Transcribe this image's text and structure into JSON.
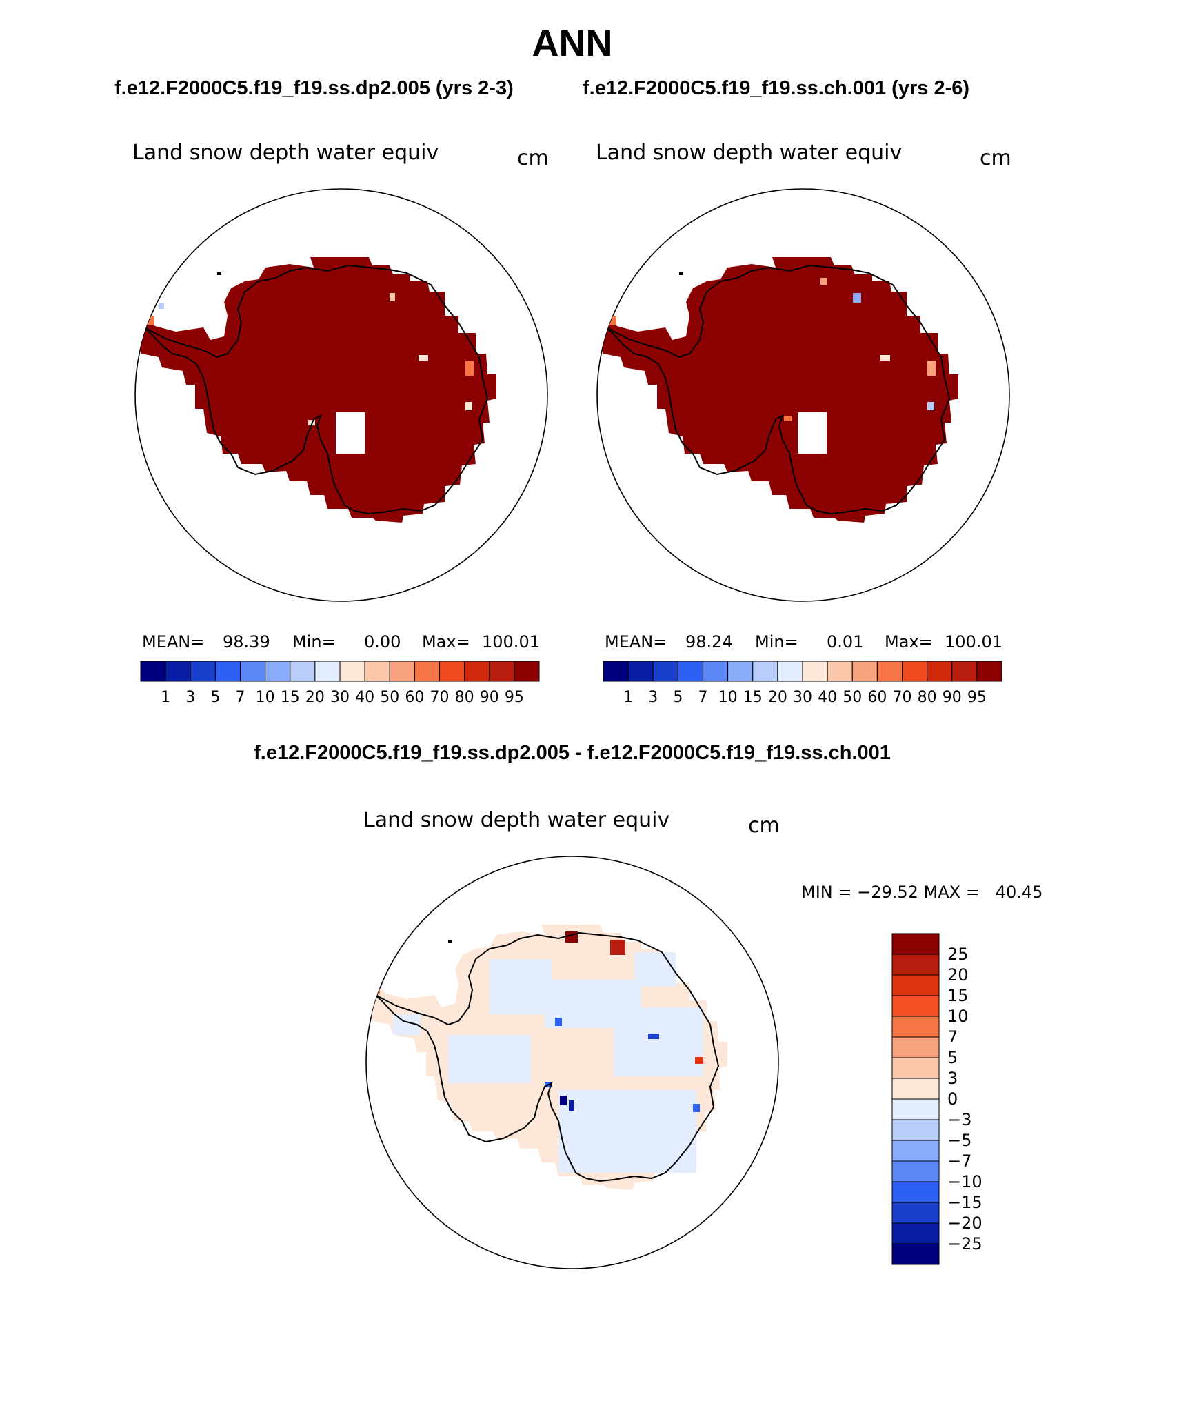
{
  "title": "ANN",
  "cases": {
    "left": "f.e12.F2000C5.f19_f19.ss.dp2.005 (yrs 2-3)",
    "right": "f.e12.F2000C5.f19_f19.ss.ch.001 (yrs 2-6)"
  },
  "diff_title": "f.e12.F2000C5.f19_f19.ss.dp2.005 - f.e12.F2000C5.f19_f19.ss.ch.001",
  "panels": [
    {
      "variable": "Land snow depth water equiv",
      "units": "cm",
      "mean_label": "MEAN=",
      "mean": "98.39",
      "min_label": "Min=",
      "min": "0.00",
      "max_label": "Max=",
      "max": "100.01"
    },
    {
      "variable": "Land snow depth water equiv",
      "units": "cm",
      "mean_label": "MEAN=",
      "mean": "98.24",
      "min_label": "Min=",
      "min": "0.01",
      "max_label": "Max=",
      "max": "100.01"
    }
  ],
  "diff_panel": {
    "variable": "Land snow depth water equiv",
    "units": "cm",
    "minmax_text": "MIN = −29.52 MAX =   40.45"
  },
  "colorbar": {
    "levels": [
      "1",
      "3",
      "5",
      "7",
      "10",
      "15",
      "20",
      "30",
      "40",
      "50",
      "60",
      "70",
      "80",
      "90",
      "95"
    ],
    "colors": [
      "#00007f",
      "#0a1ea5",
      "#1a3fcc",
      "#2d5ff2",
      "#5c87f5",
      "#8aabf7",
      "#b9cdfa",
      "#e3edfd",
      "#fde7d8",
      "#fbc8ac",
      "#f8a280",
      "#f57546",
      "#ef4a1e",
      "#d0280a",
      "#b71c0d",
      "#8b0000"
    ]
  },
  "diff_colorbar": {
    "levels": [
      "25",
      "20",
      "15",
      "10",
      "7",
      "5",
      "3",
      "0",
      "−3",
      "−5",
      "−7",
      "−10",
      "−15",
      "−20",
      "−25"
    ],
    "colors": [
      "#8b0000",
      "#b71c0d",
      "#df3410",
      "#f25024",
      "#f57546",
      "#f8a280",
      "#fbc8ac",
      "#fde7d8",
      "#e3edfd",
      "#b9cdfa",
      "#8aabf7",
      "#5c87f5",
      "#2d5ff2",
      "#1a3fcc",
      "#0a1ea5",
      "#00007f"
    ]
  },
  "map_colors": {
    "high_snow": "#8b0000",
    "diff_positive_small": "#fde7d8",
    "diff_negative_small": "#e3edfd"
  }
}
